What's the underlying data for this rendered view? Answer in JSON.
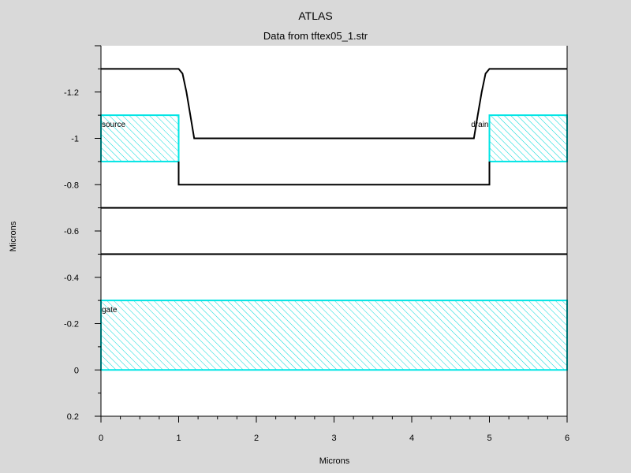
{
  "title": "ATLAS",
  "subtitle": "Data from tftex05_1.str",
  "xlabel": "Microns",
  "ylabel": "Microns",
  "colors": {
    "background": "#d9d9d9",
    "plot_bg": "#ffffff",
    "electrode": "#00e5e5",
    "boundary": "#000000"
  },
  "chart_data": {
    "type": "structure",
    "xlim": [
      0,
      6
    ],
    "ylim": [
      0.2,
      -1.4
    ],
    "x_ticks": [
      0,
      1,
      2,
      3,
      4,
      5,
      6
    ],
    "y_ticks": [
      0.2,
      0,
      -0.2,
      -0.4,
      -0.6,
      -0.8,
      -1,
      -1.2
    ],
    "x_tick_labels": [
      "0",
      "1",
      "2",
      "3",
      "4",
      "5",
      "6"
    ],
    "y_tick_labels": [
      "0.2",
      "0",
      "-0.2",
      "-0.4",
      "-0.6",
      "-0.8",
      "-1",
      "-1.2"
    ],
    "electrodes": [
      {
        "name": "source",
        "x": [
          0,
          1
        ],
        "y": [
          -1.1,
          -0.9
        ]
      },
      {
        "name": "drain",
        "x": [
          5,
          6
        ],
        "y": [
          -1.1,
          -0.9
        ]
      },
      {
        "name": "gate",
        "x": [
          0,
          6
        ],
        "y": [
          -0.3,
          0
        ]
      }
    ],
    "boundaries": [
      {
        "points": [
          [
            0,
            -1.3
          ],
          [
            1.0,
            -1.3
          ],
          [
            1.05,
            -1.28
          ],
          [
            1.1,
            -1.2
          ],
          [
            1.15,
            -1.1
          ],
          [
            1.2,
            -1.0
          ],
          [
            4.8,
            -1.0
          ],
          [
            4.85,
            -1.1
          ],
          [
            4.9,
            -1.2
          ],
          [
            4.95,
            -1.28
          ],
          [
            5.0,
            -1.3
          ],
          [
            6,
            -1.3
          ]
        ]
      },
      {
        "points": [
          [
            1.2,
            -1.0
          ],
          [
            1.2,
            -1.0
          ]
        ]
      },
      {
        "points": [
          [
            1,
            -0.9
          ],
          [
            1,
            -0.8
          ],
          [
            5,
            -0.8
          ],
          [
            5,
            -0.9
          ]
        ]
      },
      {
        "points": [
          [
            0,
            -0.7
          ],
          [
            6,
            -0.7
          ]
        ]
      },
      {
        "points": [
          [
            0,
            -0.5
          ],
          [
            6,
            -0.5
          ]
        ]
      }
    ]
  }
}
